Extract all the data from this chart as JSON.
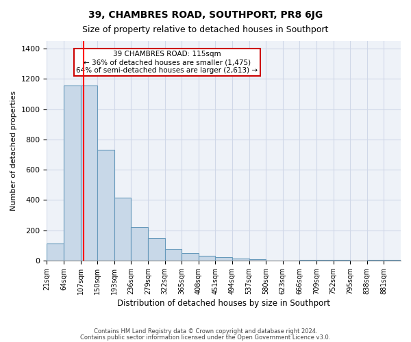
{
  "title": "39, CHAMBRES ROAD, SOUTHPORT, PR8 6JG",
  "subtitle": "Size of property relative to detached houses in Southport",
  "xlabel": "Distribution of detached houses by size in Southport",
  "ylabel": "Number of detached properties",
  "bar_color": "#c8d8e8",
  "bar_edge_color": "#6699bb",
  "background_color": "#eef2f8",
  "grid_color": "#d0d8e8",
  "red_line_x": 115,
  "annotation_title": "39 CHAMBRES ROAD: 115sqm",
  "annotation_line1": "← 36% of detached houses are smaller (1,475)",
  "annotation_line2": "64% of semi-detached houses are larger (2,613) →",
  "annotation_box_color": "#ffffff",
  "annotation_box_edge": "#cc0000",
  "bin_edges": [
    21,
    64,
    107,
    150,
    193,
    236,
    279,
    322,
    365,
    408,
    451,
    494,
    537,
    580,
    623,
    666,
    709,
    752,
    795,
    838,
    881,
    924
  ],
  "bin_labels": [
    "21sqm",
    "64sqm",
    "107sqm",
    "150sqm",
    "193sqm",
    "236sqm",
    "279sqm",
    "322sqm",
    "365sqm",
    "408sqm",
    "451sqm",
    "494sqm",
    "537sqm",
    "580sqm",
    "623sqm",
    "666sqm",
    "709sqm",
    "752sqm",
    "795sqm",
    "838sqm",
    "881sqm"
  ],
  "bar_heights": [
    110,
    1155,
    1155,
    730,
    415,
    220,
    150,
    75,
    50,
    30,
    20,
    15,
    10,
    0,
    0,
    5,
    5,
    5,
    0,
    5,
    5
  ],
  "ylim": [
    0,
    1450
  ],
  "yticks": [
    0,
    200,
    400,
    600,
    800,
    1000,
    1200,
    1400
  ],
  "footer1": "Contains HM Land Registry data © Crown copyright and database right 2024.",
  "footer2": "Contains public sector information licensed under the Open Government Licence v3.0."
}
